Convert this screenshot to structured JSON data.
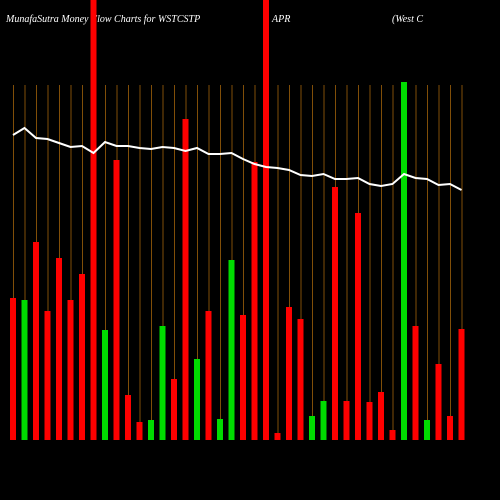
{
  "chart_data": {
    "type": "bar",
    "title": "MunafaSutra  Money Flow  Charts for WSTCSTP",
    "subtitle": "APR",
    "annotation": "(West C",
    "categories": [
      null,
      null,
      null,
      null,
      null,
      null,
      null,
      null,
      null,
      null,
      null,
      null,
      null,
      null,
      null,
      null,
      null,
      null,
      null,
      null,
      null,
      null,
      null,
      null,
      null,
      null,
      null,
      null,
      null,
      null,
      null,
      null,
      null,
      null,
      null,
      null,
      null,
      null,
      null,
      null
    ],
    "values": [
      142,
      140,
      198,
      129,
      182,
      140,
      166,
      440,
      110,
      280,
      45,
      18,
      20,
      114,
      61,
      321,
      81,
      129,
      21,
      180,
      125,
      278,
      440,
      7,
      133,
      121,
      24,
      39,
      253,
      39,
      227,
      38,
      48,
      10,
      358,
      114,
      20,
      76,
      24,
      111
    ],
    "colors": [
      "#ff0000",
      "#00dd00",
      "#ff0000",
      "#ff0000",
      "#ff0000",
      "#ff0000",
      "#ff0000",
      "#ff0000",
      "#00dd00",
      "#ff0000",
      "#ff0000",
      "#ff0000",
      "#00dd00",
      "#00dd00",
      "#ff0000",
      "#ff0000",
      "#00dd00",
      "#ff0000",
      "#00dd00",
      "#00dd00",
      "#ff0000",
      "#ff0000",
      "#ff0000",
      "#ff0000",
      "#ff0000",
      "#ff0000",
      "#00dd00",
      "#00dd00",
      "#ff0000",
      "#ff0000",
      "#ff0000",
      "#ff0000",
      "#ff0000",
      "#ff0000",
      "#00dd00",
      "#ff0000",
      "#00dd00",
      "#ff0000",
      "#ff0000",
      "#ff0000"
    ],
    "line": {
      "color": "#ffffff",
      "values": [
        305,
        312,
        302,
        301,
        297,
        293,
        294,
        287,
        298,
        294,
        294,
        292,
        291,
        293,
        292,
        289,
        292,
        286,
        286,
        287,
        281,
        276,
        273,
        272,
        270,
        265,
        264,
        266,
        261,
        261,
        262,
        256,
        254,
        256,
        266,
        262,
        261,
        255,
        256,
        250
      ]
    },
    "ylim": [
      0,
      440
    ]
  }
}
